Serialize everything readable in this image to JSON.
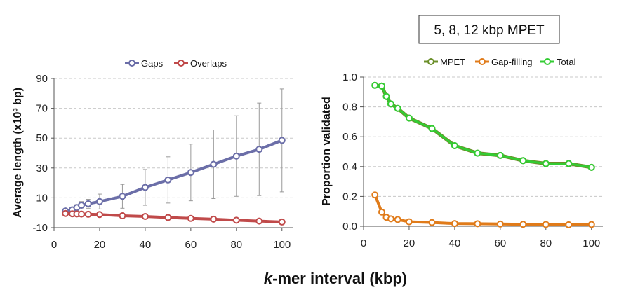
{
  "shared_xlabel_italic": "k",
  "shared_xlabel_rest": "-mer interval (kbp)",
  "chart_data": [
    {
      "type": "line",
      "title": "",
      "xlabel": "",
      "ylabel": "Average length (x10³ bp)",
      "xlim": [
        0,
        105
      ],
      "ylim": [
        -10,
        90
      ],
      "xticks": [
        0,
        20,
        40,
        60,
        80,
        100
      ],
      "yticks": [
        -10,
        10,
        30,
        50,
        70,
        90
      ],
      "grid": "horizontal dashed",
      "legend": "top",
      "series": [
        {
          "name": "Gaps",
          "color": "#6b6ea8",
          "x": [
            5,
            8,
            10,
            12,
            15,
            20,
            30,
            40,
            50,
            60,
            70,
            80,
            90,
            100
          ],
          "values": [
            1.2,
            2.0,
            3.5,
            5.0,
            6.0,
            7.5,
            11.0,
            17.0,
            22.0,
            27.0,
            32.5,
            38.0,
            42.5,
            48.5
          ],
          "error": [
            0.8,
            1.5,
            2.0,
            2.5,
            3.0,
            5.0,
            8.0,
            12.0,
            15.5,
            19.0,
            23.0,
            27.0,
            31.0,
            34.5
          ]
        },
        {
          "name": "Overlaps",
          "color": "#c04a4a",
          "x": [
            5,
            8,
            10,
            12,
            15,
            20,
            30,
            40,
            50,
            60,
            70,
            80,
            90,
            100
          ],
          "values": [
            -0.5,
            -0.7,
            -0.8,
            -0.9,
            -1.0,
            -1.2,
            -2.0,
            -2.5,
            -3.2,
            -3.8,
            -4.3,
            -5.0,
            -5.6,
            -6.2
          ],
          "error": [
            0.2,
            0.2,
            0.2,
            0.3,
            0.3,
            0.3,
            0.4,
            0.5,
            0.6,
            0.7,
            0.8,
            0.9,
            1.2,
            1.6
          ]
        }
      ]
    },
    {
      "type": "line",
      "title": "5, 8, 12 kbp MPET",
      "xlabel": "",
      "ylabel": "Proportion validated",
      "xlim": [
        0,
        105
      ],
      "ylim": [
        0,
        1.0
      ],
      "xticks": [
        0,
        20,
        40,
        60,
        80,
        100
      ],
      "yticks": [
        0.0,
        0.2,
        0.4,
        0.6,
        0.8,
        1.0
      ],
      "ytick_labels": [
        "0.0",
        "0.2",
        "0.4",
        "0.6",
        "0.8",
        "1.0"
      ],
      "grid": "horizontal dashed",
      "legend": "top",
      "series": [
        {
          "name": "MPET",
          "color": "#6b8f2a",
          "x": [
            5,
            8,
            10,
            12,
            15,
            20,
            30,
            40,
            50,
            60,
            70,
            80,
            90,
            100
          ],
          "values": [
            0.945,
            0.94,
            0.87,
            0.82,
            0.79,
            0.725,
            0.655,
            0.54,
            0.49,
            0.475,
            0.44,
            0.42,
            0.42,
            0.395
          ]
        },
        {
          "name": "Gap-filling",
          "color": "#e07b1a",
          "x": [
            5,
            8,
            10,
            12,
            15,
            20,
            30,
            40,
            50,
            60,
            70,
            80,
            90,
            100
          ],
          "values": [
            0.21,
            0.095,
            0.06,
            0.05,
            0.045,
            0.03,
            0.025,
            0.018,
            0.017,
            0.015,
            0.013,
            0.012,
            0.01,
            0.012
          ]
        },
        {
          "name": "Total",
          "color": "#33cc33",
          "x": [
            5,
            8,
            10,
            12,
            15,
            20,
            30,
            40,
            50,
            60,
            70,
            80,
            90,
            100
          ],
          "values": [
            0.945,
            0.94,
            0.87,
            0.82,
            0.79,
            0.725,
            0.655,
            0.54,
            0.49,
            0.475,
            0.44,
            0.42,
            0.42,
            0.395
          ]
        }
      ]
    }
  ]
}
